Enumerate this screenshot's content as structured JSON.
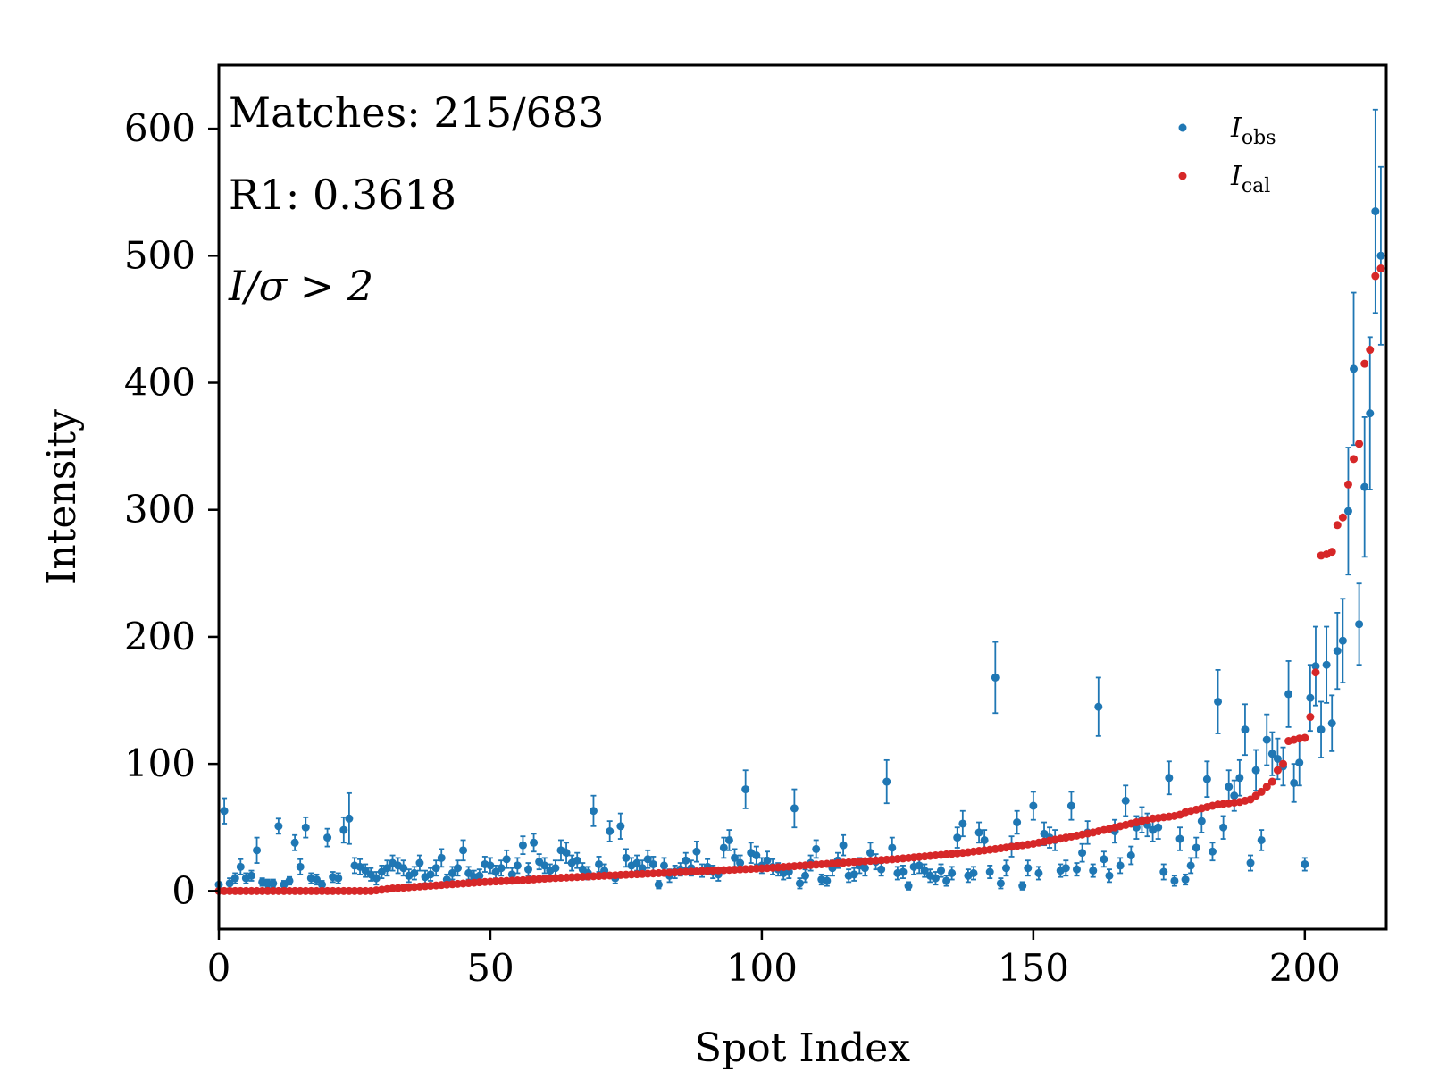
{
  "chart_data": {
    "type": "scatter",
    "xlabel": "Spot Index",
    "ylabel": "Intensity",
    "xlim": [
      0,
      215
    ],
    "ylim": [
      -30,
      650
    ],
    "xticks": [
      0,
      50,
      100,
      150,
      200
    ],
    "yticks": [
      0,
      100,
      200,
      300,
      400,
      500,
      600
    ],
    "grid": false,
    "legend_placement": "top-right",
    "annotations": [
      "Matches: 215/683",
      "R1: 0.3618",
      "I/σ > 2"
    ],
    "series": [
      {
        "name": "I_obs",
        "label_main": "I",
        "label_sub": "obs",
        "color": "#1f77b4",
        "points": [
          [
            0,
            5,
            0
          ],
          [
            1,
            63,
            10
          ],
          [
            2,
            6,
            4
          ],
          [
            3,
            10,
            4
          ],
          [
            4,
            19,
            6
          ],
          [
            5,
            10,
            4
          ],
          [
            6,
            12,
            4
          ],
          [
            7,
            32,
            10
          ],
          [
            8,
            7,
            3
          ],
          [
            9,
            6,
            3
          ],
          [
            10,
            6,
            3
          ],
          [
            11,
            51,
            6
          ],
          [
            12,
            5,
            3
          ],
          [
            13,
            8,
            3
          ],
          [
            14,
            38,
            6
          ],
          [
            15,
            19,
            6
          ],
          [
            16,
            50,
            8
          ],
          [
            17,
            10,
            4
          ],
          [
            18,
            9,
            4
          ],
          [
            19,
            5,
            3
          ],
          [
            20,
            42,
            7
          ],
          [
            21,
            11,
            4
          ],
          [
            22,
            10,
            4
          ],
          [
            23,
            48,
            10
          ],
          [
            24,
            57,
            20
          ],
          [
            25,
            20,
            6
          ],
          [
            26,
            19,
            6
          ],
          [
            27,
            16,
            5
          ],
          [
            28,
            13,
            5
          ],
          [
            29,
            10,
            5
          ],
          [
            30,
            15,
            5
          ],
          [
            31,
            18,
            6
          ],
          [
            32,
            22,
            6
          ],
          [
            33,
            20,
            6
          ],
          [
            34,
            18,
            6
          ],
          [
            35,
            12,
            5
          ],
          [
            36,
            14,
            5
          ],
          [
            37,
            22,
            6
          ],
          [
            38,
            11,
            5
          ],
          [
            39,
            13,
            5
          ],
          [
            40,
            18,
            6
          ],
          [
            41,
            26,
            7
          ],
          [
            42,
            9,
            4
          ],
          [
            43,
            14,
            5
          ],
          [
            44,
            18,
            6
          ],
          [
            45,
            32,
            8
          ],
          [
            46,
            14,
            5
          ],
          [
            47,
            11,
            5
          ],
          [
            48,
            12,
            5
          ],
          [
            49,
            21,
            6
          ],
          [
            50,
            20,
            6
          ],
          [
            51,
            15,
            5
          ],
          [
            52,
            18,
            6
          ],
          [
            53,
            25,
            7
          ],
          [
            54,
            13,
            5
          ],
          [
            55,
            20,
            6
          ],
          [
            56,
            36,
            7
          ],
          [
            57,
            17,
            5
          ],
          [
            58,
            38,
            7
          ],
          [
            59,
            23,
            6
          ],
          [
            60,
            20,
            6
          ],
          [
            61,
            16,
            5
          ],
          [
            62,
            18,
            6
          ],
          [
            63,
            32,
            8
          ],
          [
            64,
            30,
            8
          ],
          [
            65,
            22,
            6
          ],
          [
            66,
            24,
            6
          ],
          [
            67,
            17,
            5
          ],
          [
            68,
            14,
            5
          ],
          [
            69,
            63,
            12
          ],
          [
            70,
            21,
            6
          ],
          [
            71,
            16,
            5
          ],
          [
            72,
            47,
            8
          ],
          [
            73,
            10,
            4
          ],
          [
            74,
            51,
            10
          ],
          [
            75,
            26,
            7
          ],
          [
            76,
            20,
            6
          ],
          [
            77,
            22,
            6
          ],
          [
            78,
            18,
            6
          ],
          [
            79,
            25,
            7
          ],
          [
            80,
            21,
            6
          ],
          [
            81,
            5,
            3
          ],
          [
            82,
            20,
            6
          ],
          [
            83,
            12,
            5
          ],
          [
            84,
            15,
            5
          ],
          [
            85,
            17,
            5
          ],
          [
            86,
            24,
            6
          ],
          [
            87,
            18,
            6
          ],
          [
            88,
            31,
            8
          ],
          [
            89,
            16,
            5
          ],
          [
            90,
            19,
            6
          ],
          [
            91,
            15,
            5
          ],
          [
            92,
            13,
            5
          ],
          [
            93,
            34,
            8
          ],
          [
            94,
            40,
            8
          ],
          [
            95,
            26,
            7
          ],
          [
            96,
            22,
            6
          ],
          [
            97,
            80,
            15
          ],
          [
            98,
            30,
            8
          ],
          [
            99,
            28,
            7
          ],
          [
            100,
            20,
            6
          ],
          [
            101,
            24,
            7
          ],
          [
            102,
            19,
            6
          ],
          [
            103,
            17,
            5
          ],
          [
            104,
            14,
            5
          ],
          [
            105,
            15,
            5
          ],
          [
            106,
            65,
            15
          ],
          [
            107,
            6,
            4
          ],
          [
            108,
            12,
            5
          ],
          [
            109,
            22,
            6
          ],
          [
            110,
            33,
            7
          ],
          [
            111,
            9,
            4
          ],
          [
            112,
            8,
            4
          ],
          [
            113,
            18,
            6
          ],
          [
            114,
            24,
            6
          ],
          [
            115,
            36,
            8
          ],
          [
            116,
            12,
            5
          ],
          [
            117,
            13,
            5
          ],
          [
            118,
            20,
            6
          ],
          [
            119,
            18,
            6
          ],
          [
            120,
            30,
            8
          ],
          [
            121,
            23,
            6
          ],
          [
            122,
            17,
            5
          ],
          [
            123,
            86,
            17
          ],
          [
            124,
            34,
            8
          ],
          [
            125,
            14,
            5
          ],
          [
            126,
            15,
            5
          ],
          [
            127,
            4,
            3
          ],
          [
            128,
            19,
            6
          ],
          [
            129,
            20,
            6
          ],
          [
            130,
            16,
            5
          ],
          [
            131,
            12,
            5
          ],
          [
            132,
            10,
            5
          ],
          [
            133,
            16,
            5
          ],
          [
            134,
            8,
            4
          ],
          [
            135,
            14,
            5
          ],
          [
            136,
            42,
            8
          ],
          [
            137,
            53,
            10
          ],
          [
            138,
            12,
            5
          ],
          [
            139,
            14,
            5
          ],
          [
            140,
            46,
            8
          ],
          [
            141,
            40,
            8
          ],
          [
            142,
            15,
            5
          ],
          [
            143,
            168,
            28
          ],
          [
            144,
            6,
            4
          ],
          [
            145,
            18,
            6
          ],
          [
            146,
            35,
            8
          ],
          [
            147,
            54,
            9
          ],
          [
            148,
            4,
            3
          ],
          [
            149,
            18,
            6
          ],
          [
            150,
            67,
            11
          ],
          [
            151,
            14,
            5
          ],
          [
            152,
            45,
            9
          ],
          [
            153,
            42,
            8
          ],
          [
            154,
            40,
            8
          ],
          [
            155,
            16,
            5
          ],
          [
            156,
            18,
            6
          ],
          [
            157,
            67,
            11
          ],
          [
            158,
            17,
            5
          ],
          [
            159,
            30,
            7
          ],
          [
            160,
            46,
            9
          ],
          [
            161,
            16,
            5
          ],
          [
            162,
            145,
            23
          ],
          [
            163,
            25,
            6
          ],
          [
            164,
            12,
            5
          ],
          [
            165,
            47,
            9
          ],
          [
            166,
            20,
            6
          ],
          [
            167,
            71,
            12
          ],
          [
            168,
            28,
            7
          ],
          [
            169,
            50,
            9
          ],
          [
            170,
            56,
            10
          ],
          [
            171,
            52,
            9
          ],
          [
            172,
            48,
            9
          ],
          [
            173,
            50,
            9
          ],
          [
            174,
            15,
            6
          ],
          [
            175,
            89,
            13
          ],
          [
            176,
            8,
            4
          ],
          [
            177,
            41,
            9
          ],
          [
            178,
            9,
            4
          ],
          [
            179,
            20,
            6
          ],
          [
            180,
            34,
            8
          ],
          [
            181,
            55,
            9
          ],
          [
            182,
            88,
            14
          ],
          [
            183,
            31,
            7
          ],
          [
            184,
            149,
            25
          ],
          [
            185,
            50,
            9
          ],
          [
            186,
            82,
            13
          ],
          [
            187,
            75,
            12
          ],
          [
            188,
            89,
            14
          ],
          [
            189,
            127,
            20
          ],
          [
            190,
            22,
            6
          ],
          [
            191,
            95,
            16
          ],
          [
            192,
            40,
            8
          ],
          [
            193,
            119,
            20
          ],
          [
            194,
            108,
            17
          ],
          [
            195,
            104,
            16
          ],
          [
            196,
            98,
            15
          ],
          [
            197,
            155,
            26
          ],
          [
            198,
            85,
            15
          ],
          [
            199,
            101,
            18
          ],
          [
            200,
            21,
            5
          ],
          [
            201,
            152,
            26
          ],
          [
            202,
            177,
            31
          ],
          [
            203,
            127,
            22
          ],
          [
            204,
            178,
            30
          ],
          [
            205,
            132,
            22
          ],
          [
            206,
            189,
            30
          ],
          [
            207,
            197,
            33
          ],
          [
            208,
            299,
            50
          ],
          [
            209,
            411,
            60
          ],
          [
            210,
            210,
            32
          ],
          [
            211,
            318,
            55
          ],
          [
            212,
            376,
            60
          ],
          [
            213,
            535,
            80
          ],
          [
            214,
            500,
            70
          ]
        ]
      },
      {
        "name": "I_cal",
        "label_main": "I",
        "label_sub": "cal",
        "color": "#d62728",
        "values": [
          0,
          0,
          0,
          0,
          0,
          0,
          0,
          0,
          0,
          0,
          0,
          0,
          0,
          0,
          0,
          0,
          0,
          0,
          0,
          0,
          0,
          0,
          0,
          0,
          0,
          0,
          0,
          0,
          0,
          0.5,
          1,
          1.5,
          2,
          2.3,
          2.6,
          2.9,
          3.2,
          3.5,
          3.8,
          4.1,
          4.4,
          4.7,
          5,
          5.3,
          5.6,
          5.9,
          6.2,
          6.5,
          6.8,
          7.1,
          7.3,
          7.5,
          7.7,
          7.9,
          8.1,
          8.3,
          8.5,
          8.8,
          9.1,
          9.4,
          9.7,
          10,
          10.2,
          10.4,
          10.6,
          10.8,
          11,
          11.2,
          11.4,
          11.6,
          11.8,
          12,
          12.2,
          12.4,
          12.6,
          12.8,
          13,
          13.2,
          13.4,
          13.6,
          13.8,
          14,
          14.2,
          14.4,
          14.6,
          14.8,
          15,
          15.2,
          15.4,
          15.6,
          15.8,
          16,
          16.2,
          16.4,
          16.6,
          16.8,
          17,
          17.2,
          17.4,
          17.6,
          17.8,
          18,
          18.3,
          18.6,
          18.9,
          19.2,
          19.5,
          19.8,
          20.1,
          20.4,
          20.7,
          21,
          21.3,
          21.6,
          21.9,
          22.2,
          22.5,
          22.8,
          23.1,
          23.4,
          23.7,
          24,
          24.3,
          24.6,
          24.9,
          25.2,
          25.6,
          26,
          26.4,
          26.8,
          27.2,
          27.6,
          28,
          28.4,
          28.8,
          29.2,
          29.6,
          30,
          30.5,
          31,
          31.5,
          32,
          32.5,
          33,
          33.6,
          34.2,
          34.8,
          35.4,
          36,
          36.6,
          37.2,
          38,
          38.8,
          39.6,
          40.4,
          41.2,
          42,
          42.8,
          43.6,
          44.4,
          45.2,
          46,
          47,
          48,
          49,
          50,
          51,
          52,
          53,
          54,
          55,
          56,
          57,
          57.5,
          58,
          58.5,
          59,
          60,
          62,
          63,
          64,
          65,
          66,
          67,
          68,
          68.5,
          69,
          69.5,
          70,
          71,
          72,
          75,
          78,
          82,
          86,
          95,
          100,
          118,
          119,
          120,
          120.5,
          137,
          172,
          264,
          265,
          267,
          288,
          294,
          320,
          340,
          352,
          415,
          426,
          484,
          490
        ]
      }
    ]
  }
}
